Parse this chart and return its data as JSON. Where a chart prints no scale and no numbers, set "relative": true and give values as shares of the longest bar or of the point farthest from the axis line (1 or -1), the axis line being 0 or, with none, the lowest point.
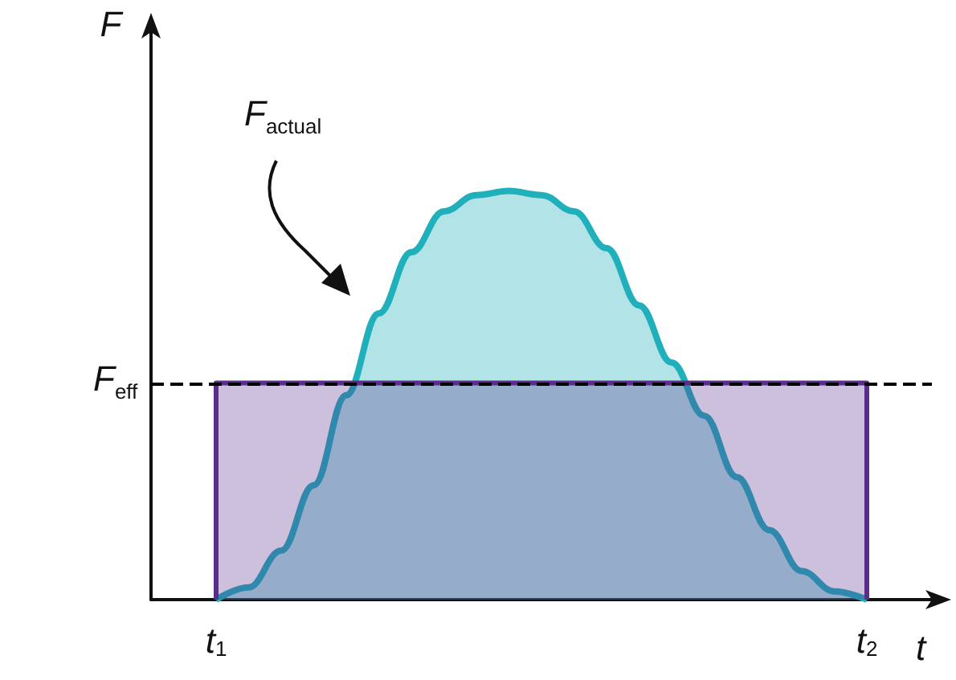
{
  "chart_data": {
    "type": "area",
    "relative": true,
    "xlabel": "t",
    "ylabel": "F",
    "categories": [
      null,
      null,
      "t$_{1}$",
      null,
      null,
      null,
      null,
      null,
      null,
      null,
      null,
      null,
      null,
      null,
      null,
      null,
      null,
      null,
      null,
      null,
      null,
      null,
      "t$_{2}$",
      null,
      null
    ],
    "series": [
      {
        "color": "#1fb0bb",
        "values": [
          null,
          null,
          0,
          0.03,
          0.12,
          0.28,
          0.5,
          0.7,
          0.85,
          0.95,
          0.99,
          1,
          0.99,
          0.95,
          0.86,
          0.72,
          0.58,
          0.45,
          0.3,
          0.17,
          0.07,
          0.02,
          0,
          null,
          null
        ]
      },
      {
        "color": "#5b2d8a",
        "values": [
          null,
          null,
          0.53,
          0.53,
          0.53,
          0.53,
          0.53,
          0.53,
          0.53,
          0.53,
          0.53,
          0.53,
          0.53,
          0.53,
          0.53,
          0.53,
          0.53,
          0.53,
          0.53,
          0.53,
          0.53,
          0.53,
          0.53,
          null,
          null
        ]
      }
    ],
    "ref_lines": [
      {
        "axis": "y",
        "value": 0.53,
        "label": "F$_{eff}$",
        "color": "#000000",
        "line_style": "dashed"
      }
    ],
    "annotations": [
      "F$_{actual}$"
    ]
  }
}
